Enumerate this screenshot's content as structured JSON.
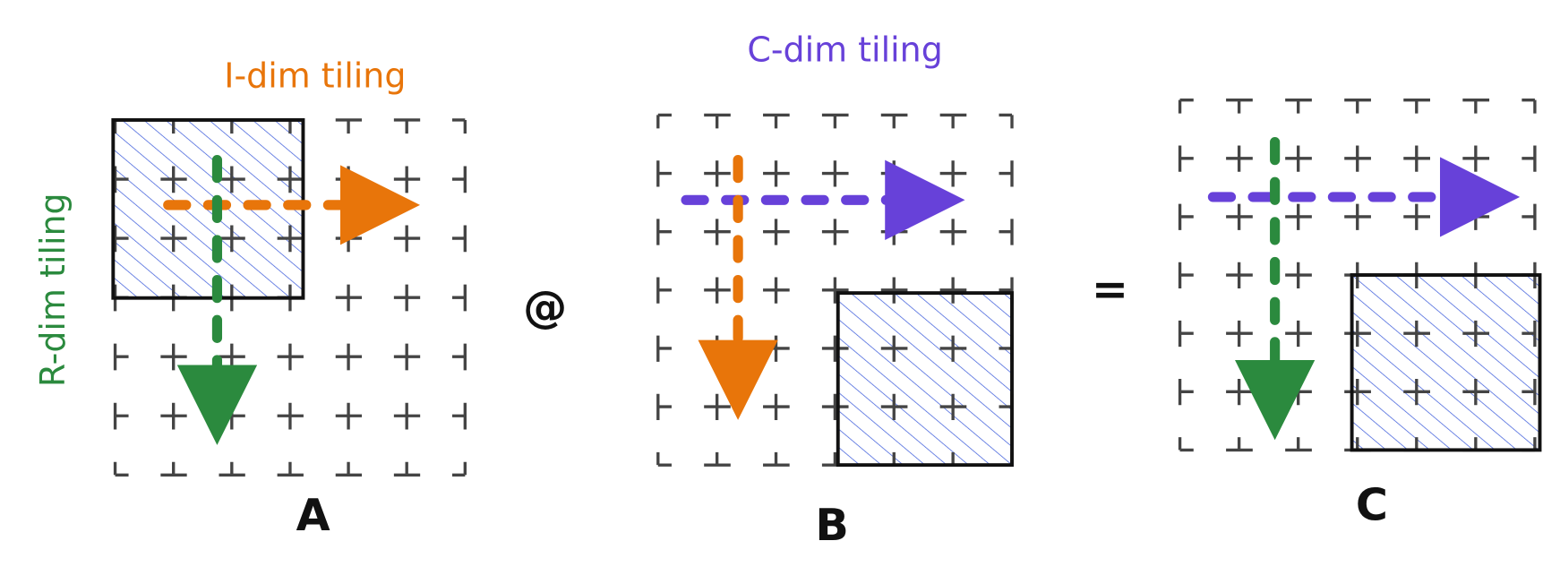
{
  "labels": {
    "i_dim": "I-dim tiling",
    "r_dim": "R-dim tiling",
    "c_dim": "C-dim tiling"
  },
  "operators": {
    "matmul": "@",
    "equals": "="
  },
  "matrices": [
    {
      "name": "A"
    },
    {
      "name": "B"
    },
    {
      "name": "C"
    }
  ]
}
